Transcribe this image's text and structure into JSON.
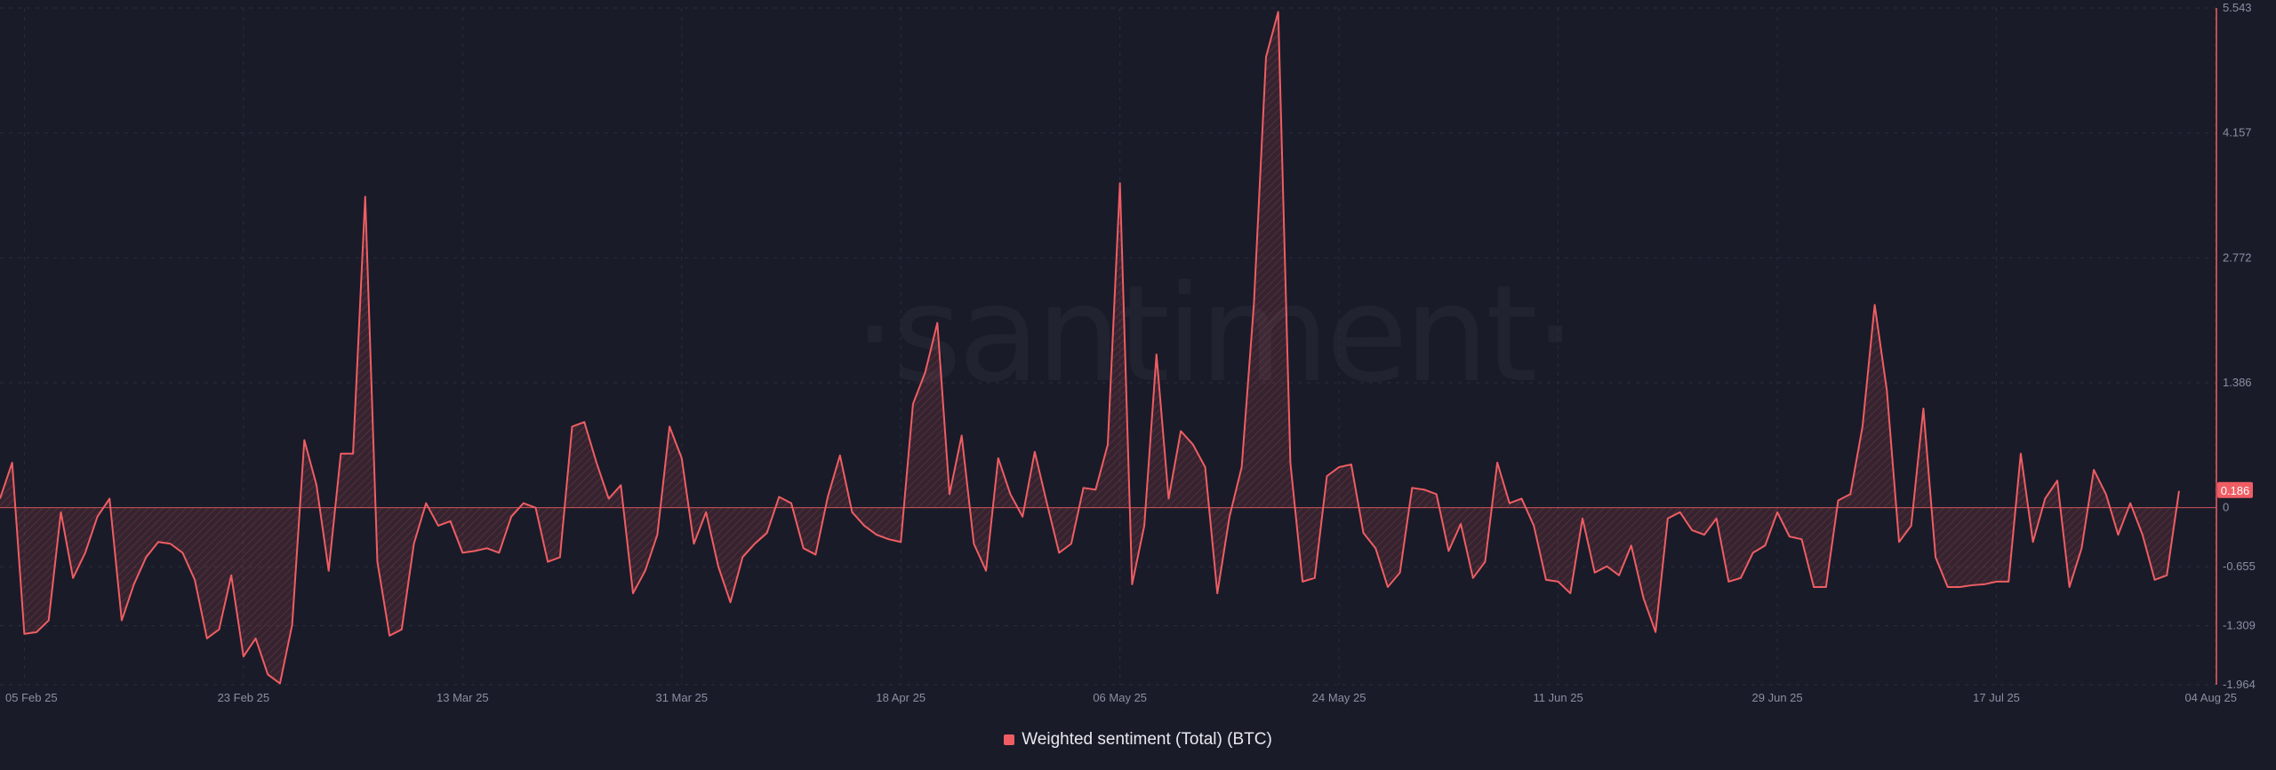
{
  "watermark": "·santiment·",
  "colors": {
    "background": "#191b28",
    "series": "#ef5d63",
    "grid": "#2a2d3d",
    "zero_line": "#ef5d63",
    "axis_text": "#8a8fa3"
  },
  "legend": {
    "label": "Weighted sentiment (Total) (BTC)"
  },
  "chart_data": {
    "type": "area",
    "title": "",
    "xlabel": "",
    "ylabel": "",
    "x_start": "03 Feb 25",
    "x_end": "04 Aug 25",
    "x_step_days": 1,
    "x_tick_labels": [
      "05 Feb 25",
      "23 Feb 25",
      "13 Mar 25",
      "31 Mar 25",
      "18 Apr 25",
      "06 May 25",
      "24 May 25",
      "11 Jun 25",
      "29 Jun 25",
      "17 Jul 25",
      "04 Aug 25"
    ],
    "y_tick_labels": [
      "5.543",
      "4.157",
      "2.772",
      "1.386",
      "0",
      "-0.655",
      "-1.309",
      "-1.964"
    ],
    "ylim": [
      -1.964,
      5.543
    ],
    "grid": true,
    "legend_position": "bottom-center",
    "last_value_label": "0.186",
    "series": [
      {
        "name": "Weighted sentiment (Total) (BTC)",
        "values": [
          0.1,
          0.5,
          -1.4,
          -1.38,
          -1.25,
          -0.05,
          -0.78,
          -0.5,
          -0.1,
          0.1,
          -1.25,
          -0.85,
          -0.55,
          -0.38,
          -0.4,
          -0.5,
          -0.8,
          -1.45,
          -1.35,
          -0.75,
          -1.65,
          -1.45,
          -1.85,
          -1.95,
          -1.3,
          0.75,
          0.25,
          -0.7,
          0.6,
          0.6,
          3.45,
          -0.6,
          -1.42,
          -1.35,
          -0.4,
          0.05,
          -0.2,
          -0.15,
          -0.5,
          -0.48,
          -0.45,
          -0.5,
          -0.1,
          0.05,
          0,
          -0.6,
          -0.55,
          0.9,
          0.95,
          0.5,
          0.1,
          0.25,
          -0.95,
          -0.7,
          -0.3,
          0.9,
          0.55,
          -0.4,
          -0.05,
          -0.65,
          -1.05,
          -0.55,
          -0.4,
          -0.28,
          0.12,
          0.05,
          -0.45,
          -0.52,
          0.12,
          0.58,
          -0.05,
          -0.2,
          -0.3,
          -0.35,
          -0.38,
          1.15,
          1.5,
          2.05,
          0.15,
          0.8,
          -0.4,
          -0.7,
          0.55,
          0.15,
          -0.1,
          0.62,
          0.05,
          -0.5,
          -0.4,
          0.22,
          0.2,
          0.7,
          3.6,
          -0.85,
          -0.2,
          1.7,
          0.1,
          0.85,
          0.7,
          0.45,
          -0.95,
          -0.1,
          0.45,
          2.25,
          5.0,
          5.5,
          0.5,
          -0.82,
          -0.78,
          0.35,
          0.45,
          0.48,
          -0.28,
          -0.45,
          -0.88,
          -0.72,
          0.22,
          0.2,
          0.15,
          -0.48,
          -0.18,
          -0.78,
          -0.6,
          0.5,
          0.05,
          0.1,
          -0.2,
          -0.8,
          -0.82,
          -0.95,
          -0.12,
          -0.72,
          -0.65,
          -0.75,
          -0.42,
          -1.0,
          -1.38,
          -0.12,
          -0.05,
          -0.25,
          -0.3,
          -0.12,
          -0.82,
          -0.78,
          -0.5,
          -0.42,
          -0.05,
          -0.32,
          -0.35,
          -0.88,
          -0.88,
          0.08,
          0.15,
          0.9,
          2.25,
          1.3,
          -0.38,
          -0.2,
          1.1,
          -0.55,
          -0.88,
          -0.88,
          -0.86,
          -0.85,
          -0.82,
          -0.82,
          0.6,
          -0.38,
          0.1,
          0.3,
          -0.88,
          -0.45,
          0.42,
          0.15,
          -0.3,
          0.05,
          -0.3,
          -0.8,
          -0.75,
          0.186
        ]
      }
    ]
  }
}
